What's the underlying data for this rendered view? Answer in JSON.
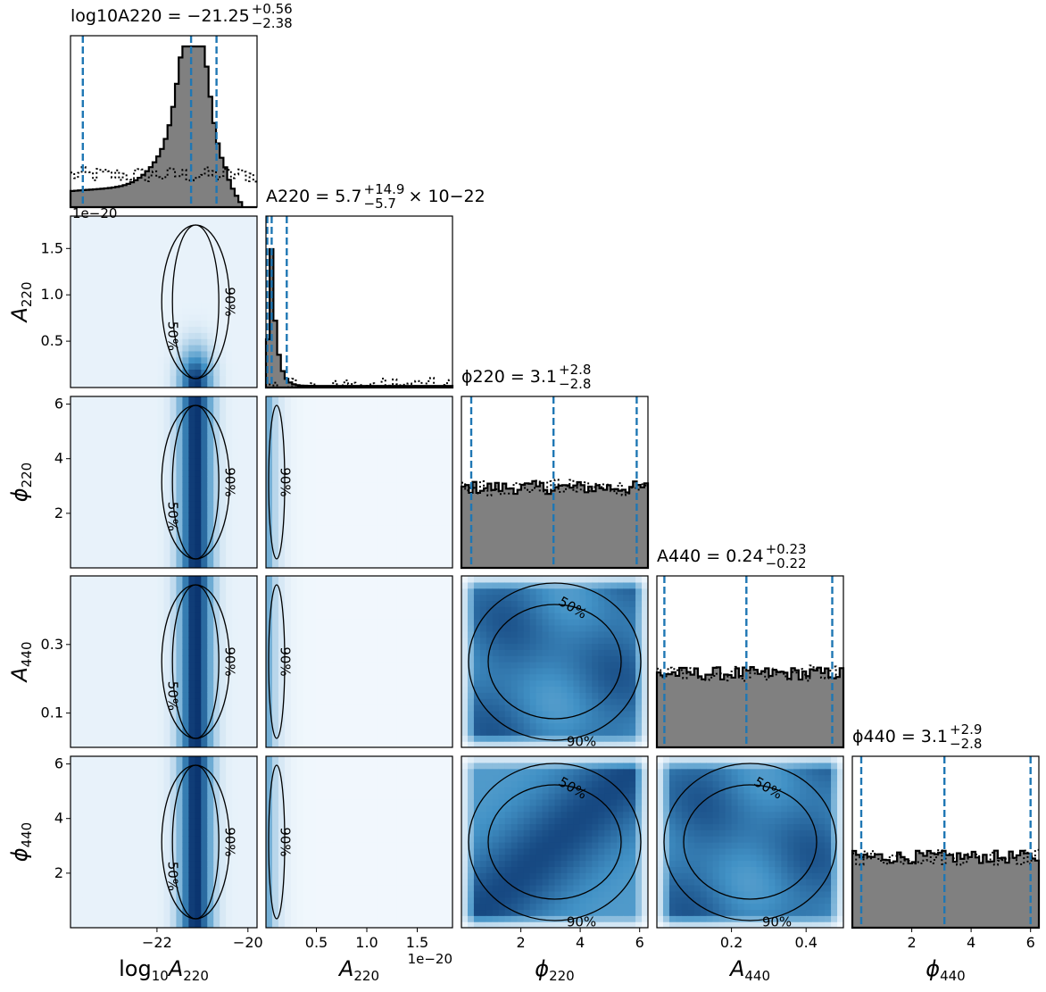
{
  "chart_data": {
    "type": "corner",
    "parameters": [
      {
        "key": "logA220",
        "axis_label_main": "log",
        "axis_label_sub": "10",
        "axis_label_var": "A",
        "axis_label_varsub": "220",
        "range": [
          -23.9,
          -19.8
        ],
        "ticks": [
          -22,
          -20
        ],
        "tick_labels": [
          "−22",
          "−20"
        ],
        "quantiles": [
          -23.63,
          -21.25,
          -20.69
        ],
        "title_text": "log10A220 = −21.25",
        "title_upper": "+0.56",
        "title_lower": "−2.38"
      },
      {
        "key": "A220",
        "axis_label_var": "A",
        "axis_label_varsub": "220",
        "range": [
          0.0,
          1.85
        ],
        "ticks": [
          0.5,
          1.0,
          1.5
        ],
        "tick_labels": [
          "0.5",
          "1.0",
          "1.5"
        ],
        "sci_offset": "1e−20",
        "quantiles": [
          0.0,
          0.057,
          0.206
        ],
        "title_text": "A220 = 5.7",
        "title_upper": "+14.9",
        "title_lower": "−5.7",
        "title_suffix": "× 10−22"
      },
      {
        "key": "phi220",
        "axis_label_var": "ϕ",
        "axis_label_varsub": "220",
        "range": [
          0.0,
          6.28
        ],
        "ticks": [
          2,
          4,
          6
        ],
        "tick_labels": [
          "2",
          "4",
          "6"
        ],
        "quantiles": [
          0.33,
          3.1,
          5.9
        ],
        "title_text": "ϕ220 = 3.1",
        "title_upper": "+2.8",
        "title_lower": "−2.8"
      },
      {
        "key": "A440",
        "axis_label_var": "A",
        "axis_label_varsub": "440",
        "range": [
          0.0,
          0.5
        ],
        "ticks": [
          0.2,
          0.4
        ],
        "tick_labels": [
          "0.2",
          "0.4"
        ],
        "ytick_values": [
          0.1,
          0.3
        ],
        "ytick_labels": [
          "0.1",
          "0.3"
        ],
        "quantiles": [
          0.02,
          0.24,
          0.47
        ],
        "title_text": "A440 = 0.24",
        "title_upper": "+0.23",
        "title_lower": "−0.22"
      },
      {
        "key": "phi440",
        "axis_label_var": "ϕ",
        "axis_label_varsub": "440",
        "range": [
          0.0,
          6.28
        ],
        "ticks": [
          2,
          4,
          6
        ],
        "tick_labels": [
          "2",
          "4",
          "6"
        ],
        "quantiles": [
          0.3,
          3.1,
          6.0
        ],
        "title_text": "ϕ440 = 3.1",
        "title_upper": "+2.9",
        "title_lower": "−2.8"
      }
    ],
    "contour_labels": {
      "inner": "50%",
      "outer": "90%"
    },
    "colors": {
      "hist_fill": "#808080",
      "quantile_line": "#1f77b4",
      "density_high": "#08306b",
      "density_low": "#f7fbff"
    }
  }
}
